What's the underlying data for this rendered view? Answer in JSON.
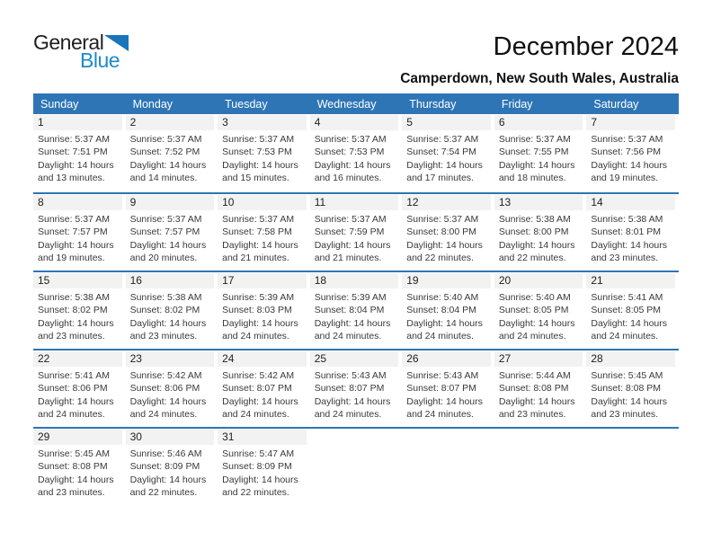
{
  "logo": {
    "part1": "General",
    "part2": "Blue"
  },
  "header": {
    "title": "December 2024",
    "subtitle": "Camperdown, New South Wales, Australia"
  },
  "colors": {
    "header_bg": "#2e75b6",
    "week_divider": "#2e75b6",
    "day_band_bg": "#f2f2f2",
    "logo_triangle": "#1b75bb",
    "logo_blue_text": "#1e8bc6"
  },
  "calendar": {
    "weekdays": [
      "Sunday",
      "Monday",
      "Tuesday",
      "Wednesday",
      "Thursday",
      "Friday",
      "Saturday"
    ],
    "weeks": [
      [
        {
          "day": "1",
          "line1": "Sunrise: 5:37 AM",
          "line2": "Sunset: 7:51 PM",
          "line3": "Daylight: 14 hours",
          "line4": "and 13 minutes."
        },
        {
          "day": "2",
          "line1": "Sunrise: 5:37 AM",
          "line2": "Sunset: 7:52 PM",
          "line3": "Daylight: 14 hours",
          "line4": "and 14 minutes."
        },
        {
          "day": "3",
          "line1": "Sunrise: 5:37 AM",
          "line2": "Sunset: 7:53 PM",
          "line3": "Daylight: 14 hours",
          "line4": "and 15 minutes."
        },
        {
          "day": "4",
          "line1": "Sunrise: 5:37 AM",
          "line2": "Sunset: 7:53 PM",
          "line3": "Daylight: 14 hours",
          "line4": "and 16 minutes."
        },
        {
          "day": "5",
          "line1": "Sunrise: 5:37 AM",
          "line2": "Sunset: 7:54 PM",
          "line3": "Daylight: 14 hours",
          "line4": "and 17 minutes."
        },
        {
          "day": "6",
          "line1": "Sunrise: 5:37 AM",
          "line2": "Sunset: 7:55 PM",
          "line3": "Daylight: 14 hours",
          "line4": "and 18 minutes."
        },
        {
          "day": "7",
          "line1": "Sunrise: 5:37 AM",
          "line2": "Sunset: 7:56 PM",
          "line3": "Daylight: 14 hours",
          "line4": "and 19 minutes."
        }
      ],
      [
        {
          "day": "8",
          "line1": "Sunrise: 5:37 AM",
          "line2": "Sunset: 7:57 PM",
          "line3": "Daylight: 14 hours",
          "line4": "and 19 minutes."
        },
        {
          "day": "9",
          "line1": "Sunrise: 5:37 AM",
          "line2": "Sunset: 7:57 PM",
          "line3": "Daylight: 14 hours",
          "line4": "and 20 minutes."
        },
        {
          "day": "10",
          "line1": "Sunrise: 5:37 AM",
          "line2": "Sunset: 7:58 PM",
          "line3": "Daylight: 14 hours",
          "line4": "and 21 minutes."
        },
        {
          "day": "11",
          "line1": "Sunrise: 5:37 AM",
          "line2": "Sunset: 7:59 PM",
          "line3": "Daylight: 14 hours",
          "line4": "and 21 minutes."
        },
        {
          "day": "12",
          "line1": "Sunrise: 5:37 AM",
          "line2": "Sunset: 8:00 PM",
          "line3": "Daylight: 14 hours",
          "line4": "and 22 minutes."
        },
        {
          "day": "13",
          "line1": "Sunrise: 5:38 AM",
          "line2": "Sunset: 8:00 PM",
          "line3": "Daylight: 14 hours",
          "line4": "and 22 minutes."
        },
        {
          "day": "14",
          "line1": "Sunrise: 5:38 AM",
          "line2": "Sunset: 8:01 PM",
          "line3": "Daylight: 14 hours",
          "line4": "and 23 minutes."
        }
      ],
      [
        {
          "day": "15",
          "line1": "Sunrise: 5:38 AM",
          "line2": "Sunset: 8:02 PM",
          "line3": "Daylight: 14 hours",
          "line4": "and 23 minutes."
        },
        {
          "day": "16",
          "line1": "Sunrise: 5:38 AM",
          "line2": "Sunset: 8:02 PM",
          "line3": "Daylight: 14 hours",
          "line4": "and 23 minutes."
        },
        {
          "day": "17",
          "line1": "Sunrise: 5:39 AM",
          "line2": "Sunset: 8:03 PM",
          "line3": "Daylight: 14 hours",
          "line4": "and 24 minutes."
        },
        {
          "day": "18",
          "line1": "Sunrise: 5:39 AM",
          "line2": "Sunset: 8:04 PM",
          "line3": "Daylight: 14 hours",
          "line4": "and 24 minutes."
        },
        {
          "day": "19",
          "line1": "Sunrise: 5:40 AM",
          "line2": "Sunset: 8:04 PM",
          "line3": "Daylight: 14 hours",
          "line4": "and 24 minutes."
        },
        {
          "day": "20",
          "line1": "Sunrise: 5:40 AM",
          "line2": "Sunset: 8:05 PM",
          "line3": "Daylight: 14 hours",
          "line4": "and 24 minutes."
        },
        {
          "day": "21",
          "line1": "Sunrise: 5:41 AM",
          "line2": "Sunset: 8:05 PM",
          "line3": "Daylight: 14 hours",
          "line4": "and 24 minutes."
        }
      ],
      [
        {
          "day": "22",
          "line1": "Sunrise: 5:41 AM",
          "line2": "Sunset: 8:06 PM",
          "line3": "Daylight: 14 hours",
          "line4": "and 24 minutes."
        },
        {
          "day": "23",
          "line1": "Sunrise: 5:42 AM",
          "line2": "Sunset: 8:06 PM",
          "line3": "Daylight: 14 hours",
          "line4": "and 24 minutes."
        },
        {
          "day": "24",
          "line1": "Sunrise: 5:42 AM",
          "line2": "Sunset: 8:07 PM",
          "line3": "Daylight: 14 hours",
          "line4": "and 24 minutes."
        },
        {
          "day": "25",
          "line1": "Sunrise: 5:43 AM",
          "line2": "Sunset: 8:07 PM",
          "line3": "Daylight: 14 hours",
          "line4": "and 24 minutes."
        },
        {
          "day": "26",
          "line1": "Sunrise: 5:43 AM",
          "line2": "Sunset: 8:07 PM",
          "line3": "Daylight: 14 hours",
          "line4": "and 24 minutes."
        },
        {
          "day": "27",
          "line1": "Sunrise: 5:44 AM",
          "line2": "Sunset: 8:08 PM",
          "line3": "Daylight: 14 hours",
          "line4": "and 23 minutes."
        },
        {
          "day": "28",
          "line1": "Sunrise: 5:45 AM",
          "line2": "Sunset: 8:08 PM",
          "line3": "Daylight: 14 hours",
          "line4": "and 23 minutes."
        }
      ],
      [
        {
          "day": "29",
          "line1": "Sunrise: 5:45 AM",
          "line2": "Sunset: 8:08 PM",
          "line3": "Daylight: 14 hours",
          "line4": "and 23 minutes."
        },
        {
          "day": "30",
          "line1": "Sunrise: 5:46 AM",
          "line2": "Sunset: 8:09 PM",
          "line3": "Daylight: 14 hours",
          "line4": "and 22 minutes."
        },
        {
          "day": "31",
          "line1": "Sunrise: 5:47 AM",
          "line2": "Sunset: 8:09 PM",
          "line3": "Daylight: 14 hours",
          "line4": "and 22 minutes."
        },
        null,
        null,
        null,
        null
      ]
    ]
  }
}
